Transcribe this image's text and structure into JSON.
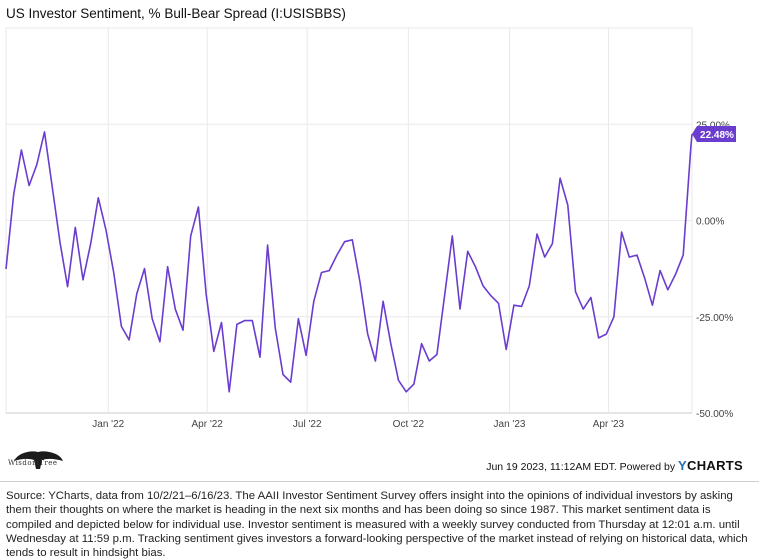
{
  "header": {
    "title": "US Investor Sentiment, % Bull-Bear Spread (I:USISBBS)"
  },
  "footer": {
    "logo_label": "WisdomTree",
    "timestamp": "Jun 19 2023, 11:12AM EDT.",
    "powered_by": "Powered by",
    "brand_y": "Y",
    "brand_rest": "CHARTS",
    "source": "Source: YCharts, data from 10/2/21–6/16/23. The AAII Investor Sentiment Survey offers insight into the opinions of individual investors by asking them their thoughts on where the market is heading in the next six months and has been doing so since 1987. This market sentiment data is compiled and depicted below for individual use. Investor sentiment is measured with a weekly survey conducted from Thursday at 12:01 a.m. until Wednesday at 11:59 p.m. Tracking sentiment gives investors a forward-looking perspective of the market instead of relying on historical data, which tends to result in hindsight bias."
  },
  "colors": {
    "line": "#6a3ccf",
    "grid": "#e9e9e9",
    "axis_text": "#444444"
  },
  "chart_data": {
    "type": "line",
    "title": "US Investor Sentiment, % Bull-Bear Spread (I:USISBBS)",
    "xlabel": "",
    "ylabel": "",
    "ylim": [
      -50,
      50
    ],
    "y_axis_position": "right",
    "yticks": [
      25,
      0,
      -25,
      -50
    ],
    "ytick_labels": [
      "25.00%",
      "0.00%",
      "-25.00%",
      "-50.00%"
    ],
    "xticks": [
      "2022-01-01",
      "2022-04-01",
      "2022-07-01",
      "2022-10-01",
      "2023-01-01",
      "2023-04-01"
    ],
    "xtick_labels": [
      "Jan '22",
      "Apr '22",
      "Jul '22",
      "Oct '22",
      "Jan '23",
      "Apr '23"
    ],
    "grid": true,
    "last_value_label": "22.48%",
    "series": [
      {
        "values": [
          [
            "2021-09-30",
            -12.6
          ],
          [
            "2021-10-07",
            6.8
          ],
          [
            "2021-10-14",
            18.3
          ],
          [
            "2021-10-21",
            9.1
          ],
          [
            "2021-10-28",
            14.5
          ],
          [
            "2021-11-04",
            23.0
          ],
          [
            "2021-11-11",
            8.8
          ],
          [
            "2021-11-18",
            -5.5
          ],
          [
            "2021-11-25",
            -17.2
          ],
          [
            "2021-12-02",
            -1.8
          ],
          [
            "2021-12-09",
            -15.4
          ],
          [
            "2021-12-16",
            -6.0
          ],
          [
            "2021-12-23",
            5.9
          ],
          [
            "2021-12-30",
            -2.5
          ],
          [
            "2022-01-06",
            -13.5
          ],
          [
            "2022-01-13",
            -27.5
          ],
          [
            "2022-01-20",
            -31.0
          ],
          [
            "2022-01-27",
            -19.0
          ],
          [
            "2022-02-03",
            -12.5
          ],
          [
            "2022-02-10",
            -25.5
          ],
          [
            "2022-02-17",
            -31.5
          ],
          [
            "2022-02-24",
            -12.0
          ],
          [
            "2022-03-03",
            -23.0
          ],
          [
            "2022-03-10",
            -28.5
          ],
          [
            "2022-03-17",
            -4.0
          ],
          [
            "2022-03-24",
            3.5
          ],
          [
            "2022-03-31",
            -19.0
          ],
          [
            "2022-04-07",
            -34.0
          ],
          [
            "2022-04-14",
            -26.5
          ],
          [
            "2022-04-21",
            -44.5
          ],
          [
            "2022-04-28",
            -27.0
          ],
          [
            "2022-05-05",
            -26.0
          ],
          [
            "2022-05-12",
            -26.0
          ],
          [
            "2022-05-19",
            -35.5
          ],
          [
            "2022-05-26",
            -6.4
          ],
          [
            "2022-06-02",
            -28.0
          ],
          [
            "2022-06-09",
            -40.0
          ],
          [
            "2022-06-16",
            -42.0
          ],
          [
            "2022-06-23",
            -25.5
          ],
          [
            "2022-06-30",
            -35.0
          ],
          [
            "2022-07-07",
            -21.0
          ],
          [
            "2022-07-14",
            -13.5
          ],
          [
            "2022-07-21",
            -13.0
          ],
          [
            "2022-07-28",
            -9.0
          ],
          [
            "2022-08-04",
            -5.5
          ],
          [
            "2022-08-11",
            -5.0
          ],
          [
            "2022-08-18",
            -16.0
          ],
          [
            "2022-08-25",
            -29.5
          ],
          [
            "2022-09-01",
            -36.5
          ],
          [
            "2022-09-08",
            -21.0
          ],
          [
            "2022-09-15",
            -32.0
          ],
          [
            "2022-09-22",
            -41.5
          ],
          [
            "2022-09-29",
            -44.5
          ],
          [
            "2022-10-06",
            -42.5
          ],
          [
            "2022-10-13",
            -32.0
          ],
          [
            "2022-10-20",
            -36.5
          ],
          [
            "2022-10-27",
            -34.8
          ],
          [
            "2022-11-03",
            -19.5
          ],
          [
            "2022-11-10",
            -4.0
          ],
          [
            "2022-11-17",
            -23.0
          ],
          [
            "2022-11-24",
            -8.0
          ],
          [
            "2022-12-01",
            -12.0
          ],
          [
            "2022-12-08",
            -17.0
          ],
          [
            "2022-12-15",
            -19.5
          ],
          [
            "2022-12-22",
            -21.5
          ],
          [
            "2022-12-29",
            -33.5
          ],
          [
            "2023-01-05",
            -22.0
          ],
          [
            "2023-01-12",
            -22.3
          ],
          [
            "2023-01-19",
            -17.0
          ],
          [
            "2023-01-26",
            -3.5
          ],
          [
            "2023-02-02",
            -9.5
          ],
          [
            "2023-02-09",
            -6.0
          ],
          [
            "2023-02-16",
            11.0
          ],
          [
            "2023-02-23",
            4.0
          ],
          [
            "2023-03-02",
            -18.5
          ],
          [
            "2023-03-09",
            -23.0
          ],
          [
            "2023-03-16",
            -20.0
          ],
          [
            "2023-03-23",
            -30.5
          ],
          [
            "2023-03-30",
            -29.5
          ],
          [
            "2023-04-06",
            -25.0
          ],
          [
            "2023-04-13",
            -3.0
          ],
          [
            "2023-04-20",
            -9.5
          ],
          [
            "2023-04-27",
            -9.0
          ],
          [
            "2023-05-04",
            -15.0
          ],
          [
            "2023-05-11",
            -22.0
          ],
          [
            "2023-05-18",
            -13.0
          ],
          [
            "2023-05-25",
            -18.0
          ],
          [
            "2023-06-01",
            -14.0
          ],
          [
            "2023-06-08",
            -9.0
          ],
          [
            "2023-06-15",
            19.2
          ],
          [
            "2023-06-16",
            22.48
          ]
        ]
      }
    ]
  }
}
